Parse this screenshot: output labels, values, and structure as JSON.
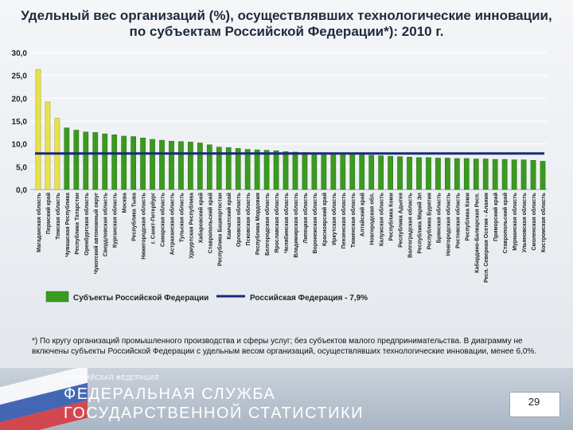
{
  "title": "Удельный вес организаций (%), осуществлявших технологические инновации, по субъектам Российской Федерации*): 2010 г.",
  "chart_data": {
    "type": "bar",
    "title": "Удельный вес организаций (%), осуществлявших технологические инновации, по субъектам Российской Федерации*): 2010 г.",
    "xlabel": "",
    "ylabel": "",
    "ylim": [
      0,
      30
    ],
    "yticks": [
      "0,0",
      "5,0",
      "10,0",
      "15,0",
      "20,0",
      "25,0",
      "30,0"
    ],
    "grid": true,
    "legend_position": "bottom",
    "categories": [
      "Магаданская область",
      "Пермский край",
      "Томская область",
      "Чувашская Республика",
      "Республика Татарстан",
      "Оренбургская область",
      "Чукотский автономный округ",
      "Свердловская область",
      "Курганская область",
      "Москва",
      "Республика Тыва",
      "Нижегородская область",
      "г. Санкт-Петербург",
      "Самарская область",
      "Астраханская область",
      "Тульская область",
      "Удмуртская Республика",
      "Хабаровский край",
      "Ставропольский край",
      "Республика Башкортостан",
      "Камчатский край",
      "Орловская область",
      "Псковская область",
      "Республика Мордовия",
      "Белгородская область",
      "Ярославская область",
      "Челябинская область",
      "Владимирская область",
      "Липецкая область",
      "Воронежская область",
      "Красноярский край",
      "Иркутская область",
      "Пензенская область",
      "Тюменская область",
      "Алтайский край",
      "Новгородская обл.",
      "Калужская область",
      "Республика Коми",
      "Республика Адыгея",
      "Волгоградская область",
      "Республика Марий Эл",
      "Республика Бурятия",
      "Брянская область",
      "Новгородская область",
      "Ростовская область",
      "Республика Коми",
      "Кабардино-Балкарская Респ.",
      "Респ. Северная Осетия - Алания",
      "Приморский край",
      "Ставропольский край",
      "Мурманская область",
      "Ульяновская область",
      "Смоленская область",
      "Костромская область"
    ],
    "series": [
      {
        "name": "Субъекты Российской Федерации",
        "color": "#3a9a1e",
        "values": [
          26.3,
          19.2,
          15.6,
          13.5,
          13.0,
          12.6,
          12.5,
          12.2,
          12.0,
          11.7,
          11.6,
          11.3,
          11.0,
          10.8,
          10.6,
          10.5,
          10.4,
          10.2,
          9.8,
          9.3,
          9.2,
          9.0,
          8.8,
          8.7,
          8.6,
          8.5,
          8.3,
          8.2,
          8.1,
          8.0,
          7.9,
          7.8,
          7.8,
          7.7,
          7.6,
          7.5,
          7.4,
          7.3,
          7.2,
          7.1,
          7.0,
          7.0,
          6.9,
          6.9,
          6.8,
          6.8,
          6.7,
          6.7,
          6.6,
          6.6,
          6.5,
          6.5,
          6.4,
          6.2
        ]
      }
    ],
    "highlight_color": "#e8e24a",
    "highlight_count": 3,
    "reference_line": {
      "name": "Российская Федерация - 7,9%",
      "value": 7.9,
      "color": "#1a2a7a"
    }
  },
  "legend": {
    "series_label": "Субъекты Российской Федерации",
    "line_label": "Российская Федерация - 7,9%"
  },
  "footnote": "*) По кругу организаций промышленного производства и сферы услуг; без субъектов малого предпринимательства. В диаграмму не включены субъекты Российской Федерации с удельным весом организаций, осуществлявших технологические инновации, менее 6,0%.",
  "footer": {
    "org_small": "РОССИЙСКАЯ ФЕДЕРАЦИЯ",
    "org_line1": "ФЕДЕРАЛЬНАЯ СЛУЖБА",
    "org_line2": "ГОСУДАРСТВЕННОЙ СТАТИСТИКИ",
    "page_number": "29"
  },
  "flag_colors": [
    "#ffffff",
    "#2f56b0",
    "#d8333a"
  ]
}
